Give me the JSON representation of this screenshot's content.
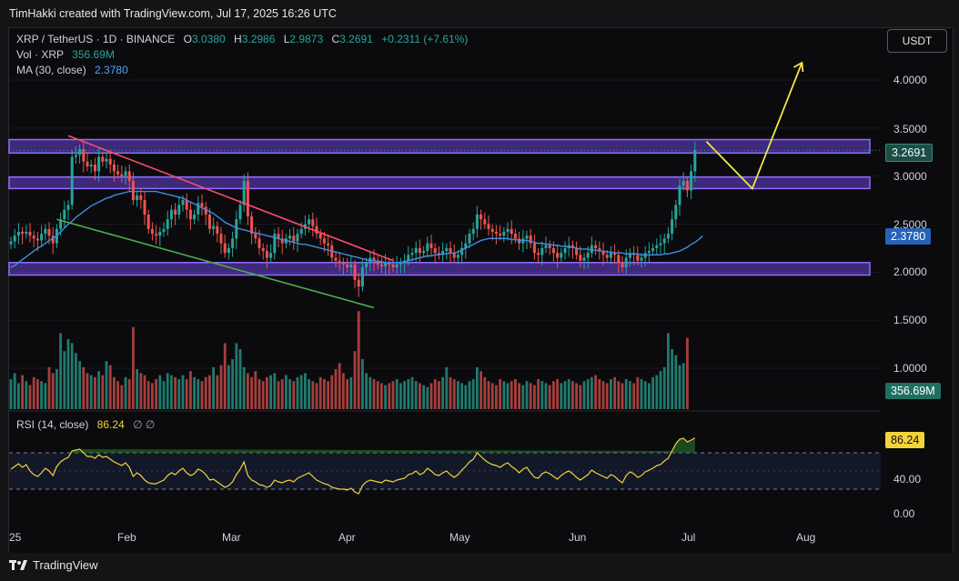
{
  "header": {
    "credit": "TimHakki created with TradingView.com, Jul 17, 2025 16:26 UTC"
  },
  "legend": {
    "title": "XRP / TetherUS · 1D · BINANCE",
    "o_label": "O",
    "o_value": "3.0380",
    "h_label": "H",
    "h_value": "3.2986",
    "l_label": "L",
    "l_value": "2.9873",
    "c_label": "C",
    "c_value": "3.2691",
    "change": "+0.2311 (+7.61%)",
    "vol_label": "Vol · XRP",
    "vol_value": "356.69M",
    "ma_label": "MA (30, close)",
    "ma_value": "2.3780",
    "rsi_label": "RSI (14, close)",
    "rsi_value": "86.24",
    "rsi_icons": "∅  ∅"
  },
  "currency_button": "USDT",
  "price_axis": {
    "ticks": [
      "4.0000",
      "3.5000",
      "3.0000",
      "2.5000",
      "2.0000",
      "1.5000",
      "1.0000"
    ]
  },
  "rsi_axis": {
    "ticks": [
      "40.00",
      "0.00"
    ]
  },
  "badges": {
    "last_price": "3.2691",
    "ma": "2.3780",
    "volume": "356.69M",
    "rsi": "86.24"
  },
  "colors": {
    "up": "#26a69a",
    "down": "#ef5350",
    "ma": "#3d8fe0",
    "rsi": "#f2d33a",
    "zone": "#7c4dff",
    "resistance_line": "#ff4d6a",
    "support_line": "#4caf50",
    "projection": "#f5e642"
  },
  "time_axis": {
    "labels": [
      "25",
      "Feb",
      "Mar",
      "Apr",
      "May",
      "Jun",
      "Jul",
      "Aug"
    ]
  },
  "footer": {
    "brand": "TradingView"
  },
  "chart_data": {
    "type": "candlestick",
    "symbol": "XRP / TetherUS",
    "interval": "1D",
    "exchange": "BINANCE",
    "ylim": [
      0.75,
      4.35
    ],
    "y_scale": "linear",
    "start_date": "2025-01-01",
    "close": [
      2.32,
      2.38,
      2.42,
      2.4,
      2.42,
      2.38,
      2.35,
      2.33,
      2.4,
      2.45,
      2.38,
      2.3,
      2.45,
      2.55,
      2.65,
      2.7,
      3.2,
      3.22,
      3.28,
      3.15,
      3.1,
      3.12,
      3.05,
      3.2,
      3.15,
      3.18,
      3.12,
      3.05,
      3.02,
      3.0,
      3.05,
      2.95,
      2.75,
      2.8,
      2.75,
      2.6,
      2.45,
      2.4,
      2.38,
      2.42,
      2.45,
      2.55,
      2.65,
      2.6,
      2.7,
      2.75,
      2.65,
      2.55,
      2.6,
      2.72,
      2.68,
      2.6,
      2.45,
      2.48,
      2.4,
      2.3,
      2.2,
      2.25,
      2.35,
      2.55,
      2.7,
      2.95,
      2.58,
      2.4,
      2.35,
      2.25,
      2.22,
      2.15,
      2.2,
      2.4,
      2.35,
      2.3,
      2.35,
      2.38,
      2.32,
      2.4,
      2.45,
      2.5,
      2.55,
      2.48,
      2.4,
      2.35,
      2.3,
      2.28,
      2.15,
      2.12,
      2.1,
      2.08,
      2.05,
      2.08,
      1.92,
      1.85,
      2.05,
      2.1,
      2.15,
      2.12,
      2.08,
      2.06,
      2.1,
      2.08,
      2.05,
      2.08,
      2.1,
      2.12,
      2.18,
      2.2,
      2.25,
      2.2,
      2.22,
      2.3,
      2.25,
      2.2,
      2.18,
      2.22,
      2.25,
      2.2,
      2.15,
      2.18,
      2.25,
      2.3,
      2.4,
      2.45,
      2.6,
      2.55,
      2.5,
      2.45,
      2.42,
      2.4,
      2.38,
      2.42,
      2.45,
      2.4,
      2.35,
      2.3,
      2.35,
      2.38,
      2.3,
      2.2,
      2.18,
      2.25,
      2.28,
      2.25,
      2.2,
      2.15,
      2.2,
      2.25,
      2.28,
      2.25,
      2.18,
      2.12,
      2.15,
      2.2,
      2.28,
      2.25,
      2.22,
      2.18,
      2.15,
      2.2,
      2.18,
      2.1,
      2.05,
      2.15,
      2.2,
      2.18,
      2.12,
      2.15,
      2.2,
      2.22,
      2.25,
      2.28,
      2.3,
      2.35,
      2.4,
      2.55,
      2.7,
      2.9,
      2.95,
      2.85,
      3.05,
      3.27
    ],
    "volume_m": [
      150,
      180,
      130,
      170,
      140,
      120,
      160,
      150,
      140,
      130,
      210,
      180,
      200,
      380,
      290,
      350,
      330,
      280,
      240,
      210,
      180,
      170,
      160,
      190,
      170,
      240,
      220,
      160,
      140,
      120,
      160,
      150,
      410,
      200,
      180,
      170,
      140,
      130,
      150,
      170,
      140,
      180,
      170,
      160,
      150,
      170,
      150,
      190,
      160,
      150,
      140,
      160,
      170,
      210,
      170,
      220,
      330,
      220,
      250,
      330,
      300,
      210,
      180,
      160,
      190,
      150,
      140,
      160,
      170,
      180,
      140,
      150,
      170,
      150,
      140,
      160,
      170,
      180,
      150,
      140,
      130,
      160,
      150,
      140,
      170,
      200,
      230,
      180,
      150,
      160,
      290,
      490,
      250,
      180,
      160,
      150,
      140,
      130,
      120,
      130,
      140,
      150,
      130,
      140,
      150,
      160,
      140,
      130,
      120,
      110,
      130,
      150,
      140,
      160,
      210,
      160,
      150,
      140,
      130,
      120,
      140,
      150,
      210,
      190,
      160,
      140,
      130,
      120,
      150,
      140,
      130,
      140,
      150,
      130,
      120,
      140,
      130,
      120,
      150,
      140,
      130,
      120,
      140,
      150,
      130,
      140,
      150,
      140,
      130,
      120,
      140,
      150,
      160,
      170,
      150,
      140,
      130,
      150,
      160,
      140,
      130,
      150,
      140,
      130,
      160,
      150,
      140,
      130,
      160,
      170,
      190,
      210,
      380,
      300,
      270,
      220,
      230,
      357
    ],
    "ma30": [
      2.05,
      2.07,
      2.1,
      2.13,
      2.16,
      2.19,
      2.22,
      2.25,
      2.27,
      2.3,
      2.33,
      2.35,
      2.38,
      2.42,
      2.46,
      2.5,
      2.53,
      2.57,
      2.6,
      2.63,
      2.66,
      2.69,
      2.71,
      2.73,
      2.75,
      2.77,
      2.78,
      2.8,
      2.81,
      2.82,
      2.83,
      2.84,
      2.84,
      2.84,
      2.84,
      2.84,
      2.84,
      2.84,
      2.84,
      2.83,
      2.82,
      2.81,
      2.8,
      2.79,
      2.78,
      2.77,
      2.75,
      2.73,
      2.71,
      2.69,
      2.67,
      2.65,
      2.63,
      2.61,
      2.58,
      2.55,
      2.52,
      2.5,
      2.48,
      2.46,
      2.45,
      2.44,
      2.43,
      2.42,
      2.41,
      2.4,
      2.39,
      2.38,
      2.37,
      2.36,
      2.35,
      2.34,
      2.33,
      2.32,
      2.31,
      2.3,
      2.29,
      2.29,
      2.28,
      2.27,
      2.26,
      2.25,
      2.24,
      2.23,
      2.22,
      2.21,
      2.2,
      2.19,
      2.18,
      2.17,
      2.16,
      2.15,
      2.14,
      2.13,
      2.12,
      2.12,
      2.11,
      2.11,
      2.1,
      2.1,
      2.1,
      2.1,
      2.1,
      2.11,
      2.12,
      2.13,
      2.14,
      2.15,
      2.16,
      2.17,
      2.17,
      2.18,
      2.18,
      2.19,
      2.19,
      2.2,
      2.2,
      2.21,
      2.23,
      2.25,
      2.27,
      2.29,
      2.31,
      2.33,
      2.34,
      2.35,
      2.35,
      2.35,
      2.35,
      2.35,
      2.35,
      2.34,
      2.34,
      2.33,
      2.33,
      2.33,
      2.32,
      2.31,
      2.3,
      2.3,
      2.29,
      2.29,
      2.28,
      2.28,
      2.27,
      2.27,
      2.26,
      2.26,
      2.25,
      2.24,
      2.24,
      2.24,
      2.23,
      2.23,
      2.22,
      2.22,
      2.21,
      2.21,
      2.2,
      2.2,
      2.2,
      2.19,
      2.19,
      2.19,
      2.19,
      2.18,
      2.18,
      2.18,
      2.18,
      2.18,
      2.18,
      2.19,
      2.19,
      2.2,
      2.21,
      2.22,
      2.24,
      2.26,
      2.29,
      2.31,
      2.34,
      2.378
    ],
    "rsi": [
      52,
      55,
      58,
      54,
      57,
      50,
      46,
      44,
      48,
      53,
      50,
      45,
      55,
      60,
      63,
      65,
      72,
      73,
      74,
      70,
      66,
      66,
      64,
      68,
      65,
      66,
      63,
      60,
      58,
      56,
      59,
      54,
      44,
      48,
      45,
      40,
      37,
      36,
      36,
      38,
      40,
      45,
      48,
      46,
      50,
      53,
      48,
      45,
      47,
      52,
      50,
      46,
      40,
      41,
      38,
      35,
      32,
      34,
      38,
      46,
      52,
      60,
      45,
      40,
      38,
      35,
      34,
      32,
      34,
      40,
      38,
      37,
      39,
      40,
      38,
      42,
      44,
      46,
      48,
      44,
      40,
      38,
      36,
      35,
      32,
      31,
      30,
      30,
      29,
      31,
      27,
      25,
      34,
      38,
      40,
      39,
      38,
      37,
      40,
      39,
      38,
      40,
      41,
      42,
      46,
      47,
      50,
      46,
      48,
      53,
      50,
      46,
      45,
      48,
      50,
      46,
      43,
      46,
      51,
      55,
      60,
      63,
      70,
      66,
      62,
      59,
      57,
      56,
      54,
      57,
      59,
      55,
      52,
      48,
      52,
      54,
      48,
      43,
      42,
      47,
      49,
      47,
      44,
      41,
      45,
      48,
      50,
      47,
      43,
      40,
      43,
      46,
      51,
      48,
      46,
      44,
      42,
      46,
      44,
      40,
      37,
      45,
      49,
      47,
      43,
      45,
      49,
      51,
      53,
      56,
      57,
      61,
      64,
      72,
      80,
      85,
      86,
      82,
      84,
      86.24
    ],
    "horizontal_zones": [
      [
        3.24,
        3.38
      ],
      [
        2.87,
        2.99
      ],
      [
        1.97,
        2.1
      ]
    ],
    "rsi_bands": [
      30,
      70
    ],
    "rsi_ylim": [
      0,
      100
    ],
    "annotations": [
      "descending resistance line",
      "descending support line",
      "projected path to ~4.2"
    ]
  }
}
